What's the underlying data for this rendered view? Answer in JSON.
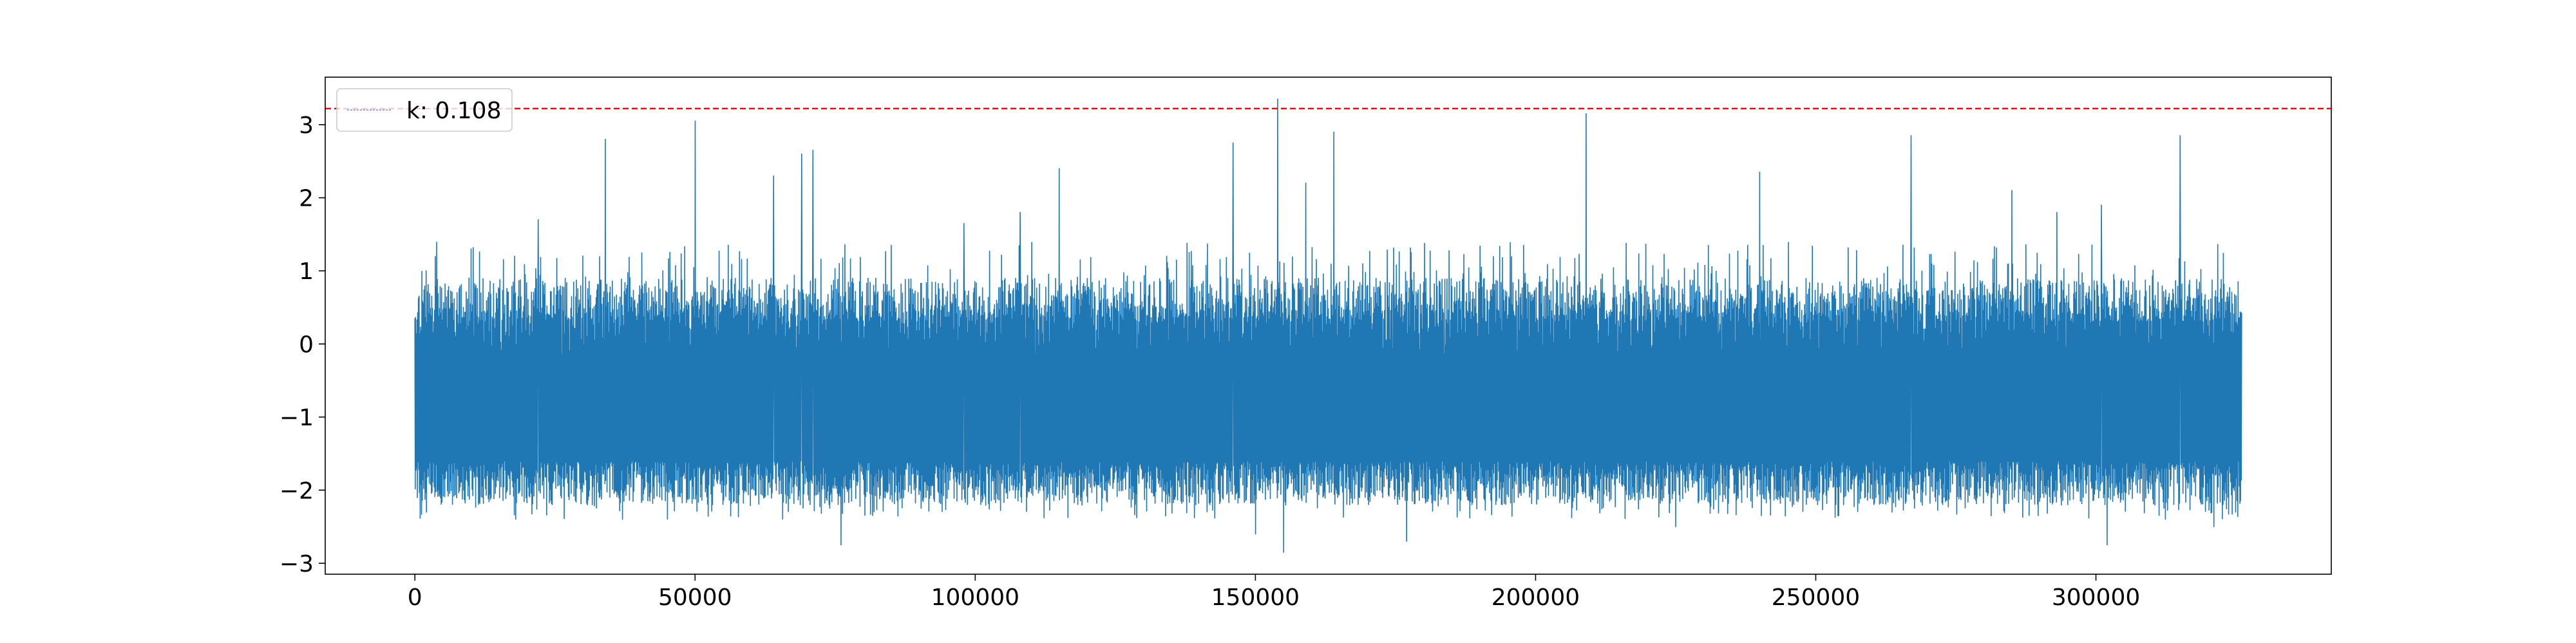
{
  "chart_data": {
    "type": "line",
    "title": "",
    "xlabel": "",
    "ylabel": "",
    "xlim": [
      -16000,
      342000
    ],
    "ylim": [
      -3.15,
      3.65
    ],
    "x_ticks": [
      0,
      50000,
      100000,
      150000,
      200000,
      250000,
      300000
    ],
    "x_tick_labels": [
      "0",
      "50000",
      "100000",
      "150000",
      "200000",
      "250000",
      "300000"
    ],
    "y_ticks": [
      -3,
      -2,
      -1,
      0,
      1,
      2,
      3
    ],
    "y_tick_labels": [
      "−3",
      "−2",
      "−1",
      "0",
      "1",
      "2",
      "3"
    ],
    "grid": false,
    "legend": {
      "placement": "top-left",
      "entries": [
        "k: 0.108"
      ]
    },
    "series": [
      {
        "name": "k: 0.108",
        "color": "#1f77b4",
        "x_range": [
          0,
          326000
        ],
        "typical_range": [
          -2.2,
          0.9
        ],
        "description": "dense oscillating signal",
        "peaks": [
          {
            "x": 2000,
            "y": 1.0
          },
          {
            "x": 10000,
            "y": 1.3
          },
          {
            "x": 22000,
            "y": 1.7
          },
          {
            "x": 34000,
            "y": 2.8
          },
          {
            "x": 50000,
            "y": 3.05
          },
          {
            "x": 64000,
            "y": 2.3
          },
          {
            "x": 69000,
            "y": 2.6
          },
          {
            "x": 71000,
            "y": 2.65
          },
          {
            "x": 98000,
            "y": 1.65
          },
          {
            "x": 108000,
            "y": 1.8
          },
          {
            "x": 115000,
            "y": 2.4
          },
          {
            "x": 146000,
            "y": 2.75
          },
          {
            "x": 150000,
            "y": 2.1
          },
          {
            "x": 154000,
            "y": 3.35
          },
          {
            "x": 159000,
            "y": 2.2
          },
          {
            "x": 164000,
            "y": 2.9
          },
          {
            "x": 209000,
            "y": 3.15
          },
          {
            "x": 240000,
            "y": 2.35
          },
          {
            "x": 267000,
            "y": 2.85
          },
          {
            "x": 285000,
            "y": 2.1
          },
          {
            "x": 293000,
            "y": 1.8
          },
          {
            "x": 301000,
            "y": 1.9
          },
          {
            "x": 315000,
            "y": 2.85
          }
        ],
        "troughs": [
          {
            "x": 2000,
            "y": -2.3
          },
          {
            "x": 76000,
            "y": -2.75
          },
          {
            "x": 150000,
            "y": -2.6
          },
          {
            "x": 155000,
            "y": -2.85
          },
          {
            "x": 177000,
            "y": -2.7
          },
          {
            "x": 225000,
            "y": -2.5
          },
          {
            "x": 302000,
            "y": -2.75
          },
          {
            "x": 321000,
            "y": -2.5
          }
        ]
      }
    ],
    "reference_lines": [
      {
        "orientation": "horizontal",
        "y": 3.22,
        "color": "#ff0000",
        "style": "dashed"
      }
    ]
  }
}
